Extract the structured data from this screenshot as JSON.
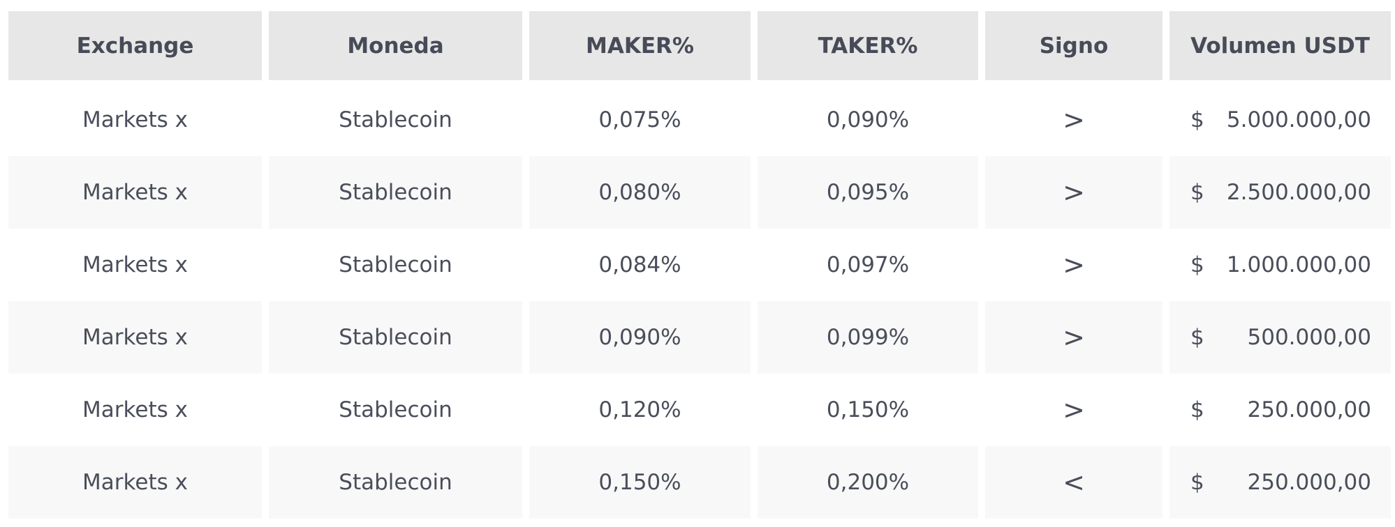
{
  "table": {
    "headers": [
      "Exchange",
      "Moneda",
      "MAKER%",
      "TAKER%",
      "Signo",
      "Volumen USDT"
    ],
    "rows": [
      {
        "exchange": "Markets x",
        "moneda": "Stablecoin",
        "maker": "0,075%",
        "taker": "0,090%",
        "signo": ">",
        "currency": "$",
        "volumen": "5.000.000,00"
      },
      {
        "exchange": "Markets x",
        "moneda": "Stablecoin",
        "maker": "0,080%",
        "taker": "0,095%",
        "signo": ">",
        "currency": "$",
        "volumen": "2.500.000,00"
      },
      {
        "exchange": "Markets x",
        "moneda": "Stablecoin",
        "maker": "0,084%",
        "taker": "0,097%",
        "signo": ">",
        "currency": "$",
        "volumen": "1.000.000,00"
      },
      {
        "exchange": "Markets x",
        "moneda": "Stablecoin",
        "maker": "0,090%",
        "taker": "0,099%",
        "signo": ">",
        "currency": "$",
        "volumen": "500.000,00"
      },
      {
        "exchange": "Markets x",
        "moneda": "Stablecoin",
        "maker": "0,120%",
        "taker": "0,150%",
        "signo": ">",
        "currency": "$",
        "volumen": "250.000,00"
      },
      {
        "exchange": "Markets x",
        "moneda": "Stablecoin",
        "maker": "0,150%",
        "taker": "0,200%",
        "signo": "<",
        "currency": "$",
        "volumen": "250.000,00"
      }
    ]
  },
  "colors": {
    "header_bg": "#e7e7e7",
    "row_alt_bg": "#f8f8f8",
    "text": "#4a4e5a"
  }
}
